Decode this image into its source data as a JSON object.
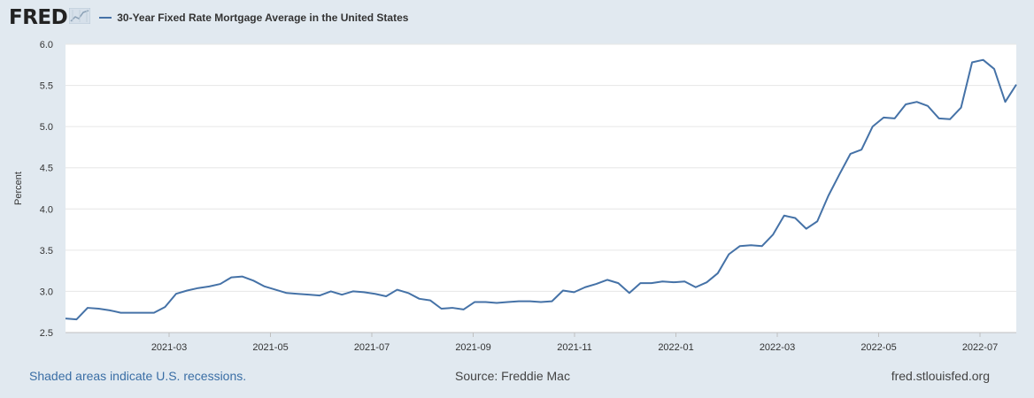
{
  "header": {
    "logo_text": "FRED",
    "logo_icon": "trend-line-icon",
    "legend_label": "30-Year Fixed Rate Mortgage Average in the United States",
    "series_color": "#4572a7"
  },
  "footer": {
    "recessions_note": "Shaded areas indicate U.S. recessions.",
    "source": "Source: Freddie Mac",
    "site": "fred.stlouisfed.org"
  },
  "chart_data": {
    "type": "line",
    "title": "30-Year Fixed Rate Mortgage Average in the United States",
    "xlabel": "",
    "ylabel": "Percent",
    "ylim": [
      2.5,
      6.0
    ],
    "yticks": [
      "2.5",
      "3.0",
      "3.5",
      "4.0",
      "4.5",
      "5.0",
      "5.5",
      "6.0"
    ],
    "xticks": [
      "2021-03",
      "2021-05",
      "2021-07",
      "2021-09",
      "2021-11",
      "2022-01",
      "2022-03",
      "2022-05",
      "2022-07"
    ],
    "grid": true,
    "series": [
      {
        "name": "30-Year Fixed Rate Mortgage Average in the United States",
        "values": [
          2.67,
          2.66,
          2.8,
          2.79,
          2.77,
          2.74,
          2.74,
          2.74,
          2.74,
          2.81,
          2.97,
          3.01,
          3.04,
          3.06,
          3.09,
          3.17,
          3.18,
          3.13,
          3.06,
          3.02,
          2.98,
          2.97,
          2.96,
          2.95,
          3.0,
          2.96,
          3.0,
          2.99,
          2.97,
          2.94,
          3.02,
          2.98,
          2.91,
          2.89,
          2.79,
          2.8,
          2.78,
          2.87,
          2.87,
          2.86,
          2.87,
          2.88,
          2.88,
          2.87,
          2.88,
          3.01,
          2.99,
          3.05,
          3.09,
          3.14,
          3.1,
          2.98,
          3.1,
          3.1,
          3.12,
          3.11,
          3.12,
          3.05,
          3.11,
          3.22,
          3.45,
          3.55,
          3.56,
          3.55,
          3.69,
          3.92,
          3.89,
          3.76,
          3.85,
          4.16,
          4.42,
          4.67,
          4.72,
          5.0,
          5.11,
          5.1,
          5.27,
          5.3,
          5.25,
          5.1,
          5.09,
          5.23,
          5.78,
          5.81,
          5.7,
          5.3,
          5.51
        ]
      }
    ]
  }
}
